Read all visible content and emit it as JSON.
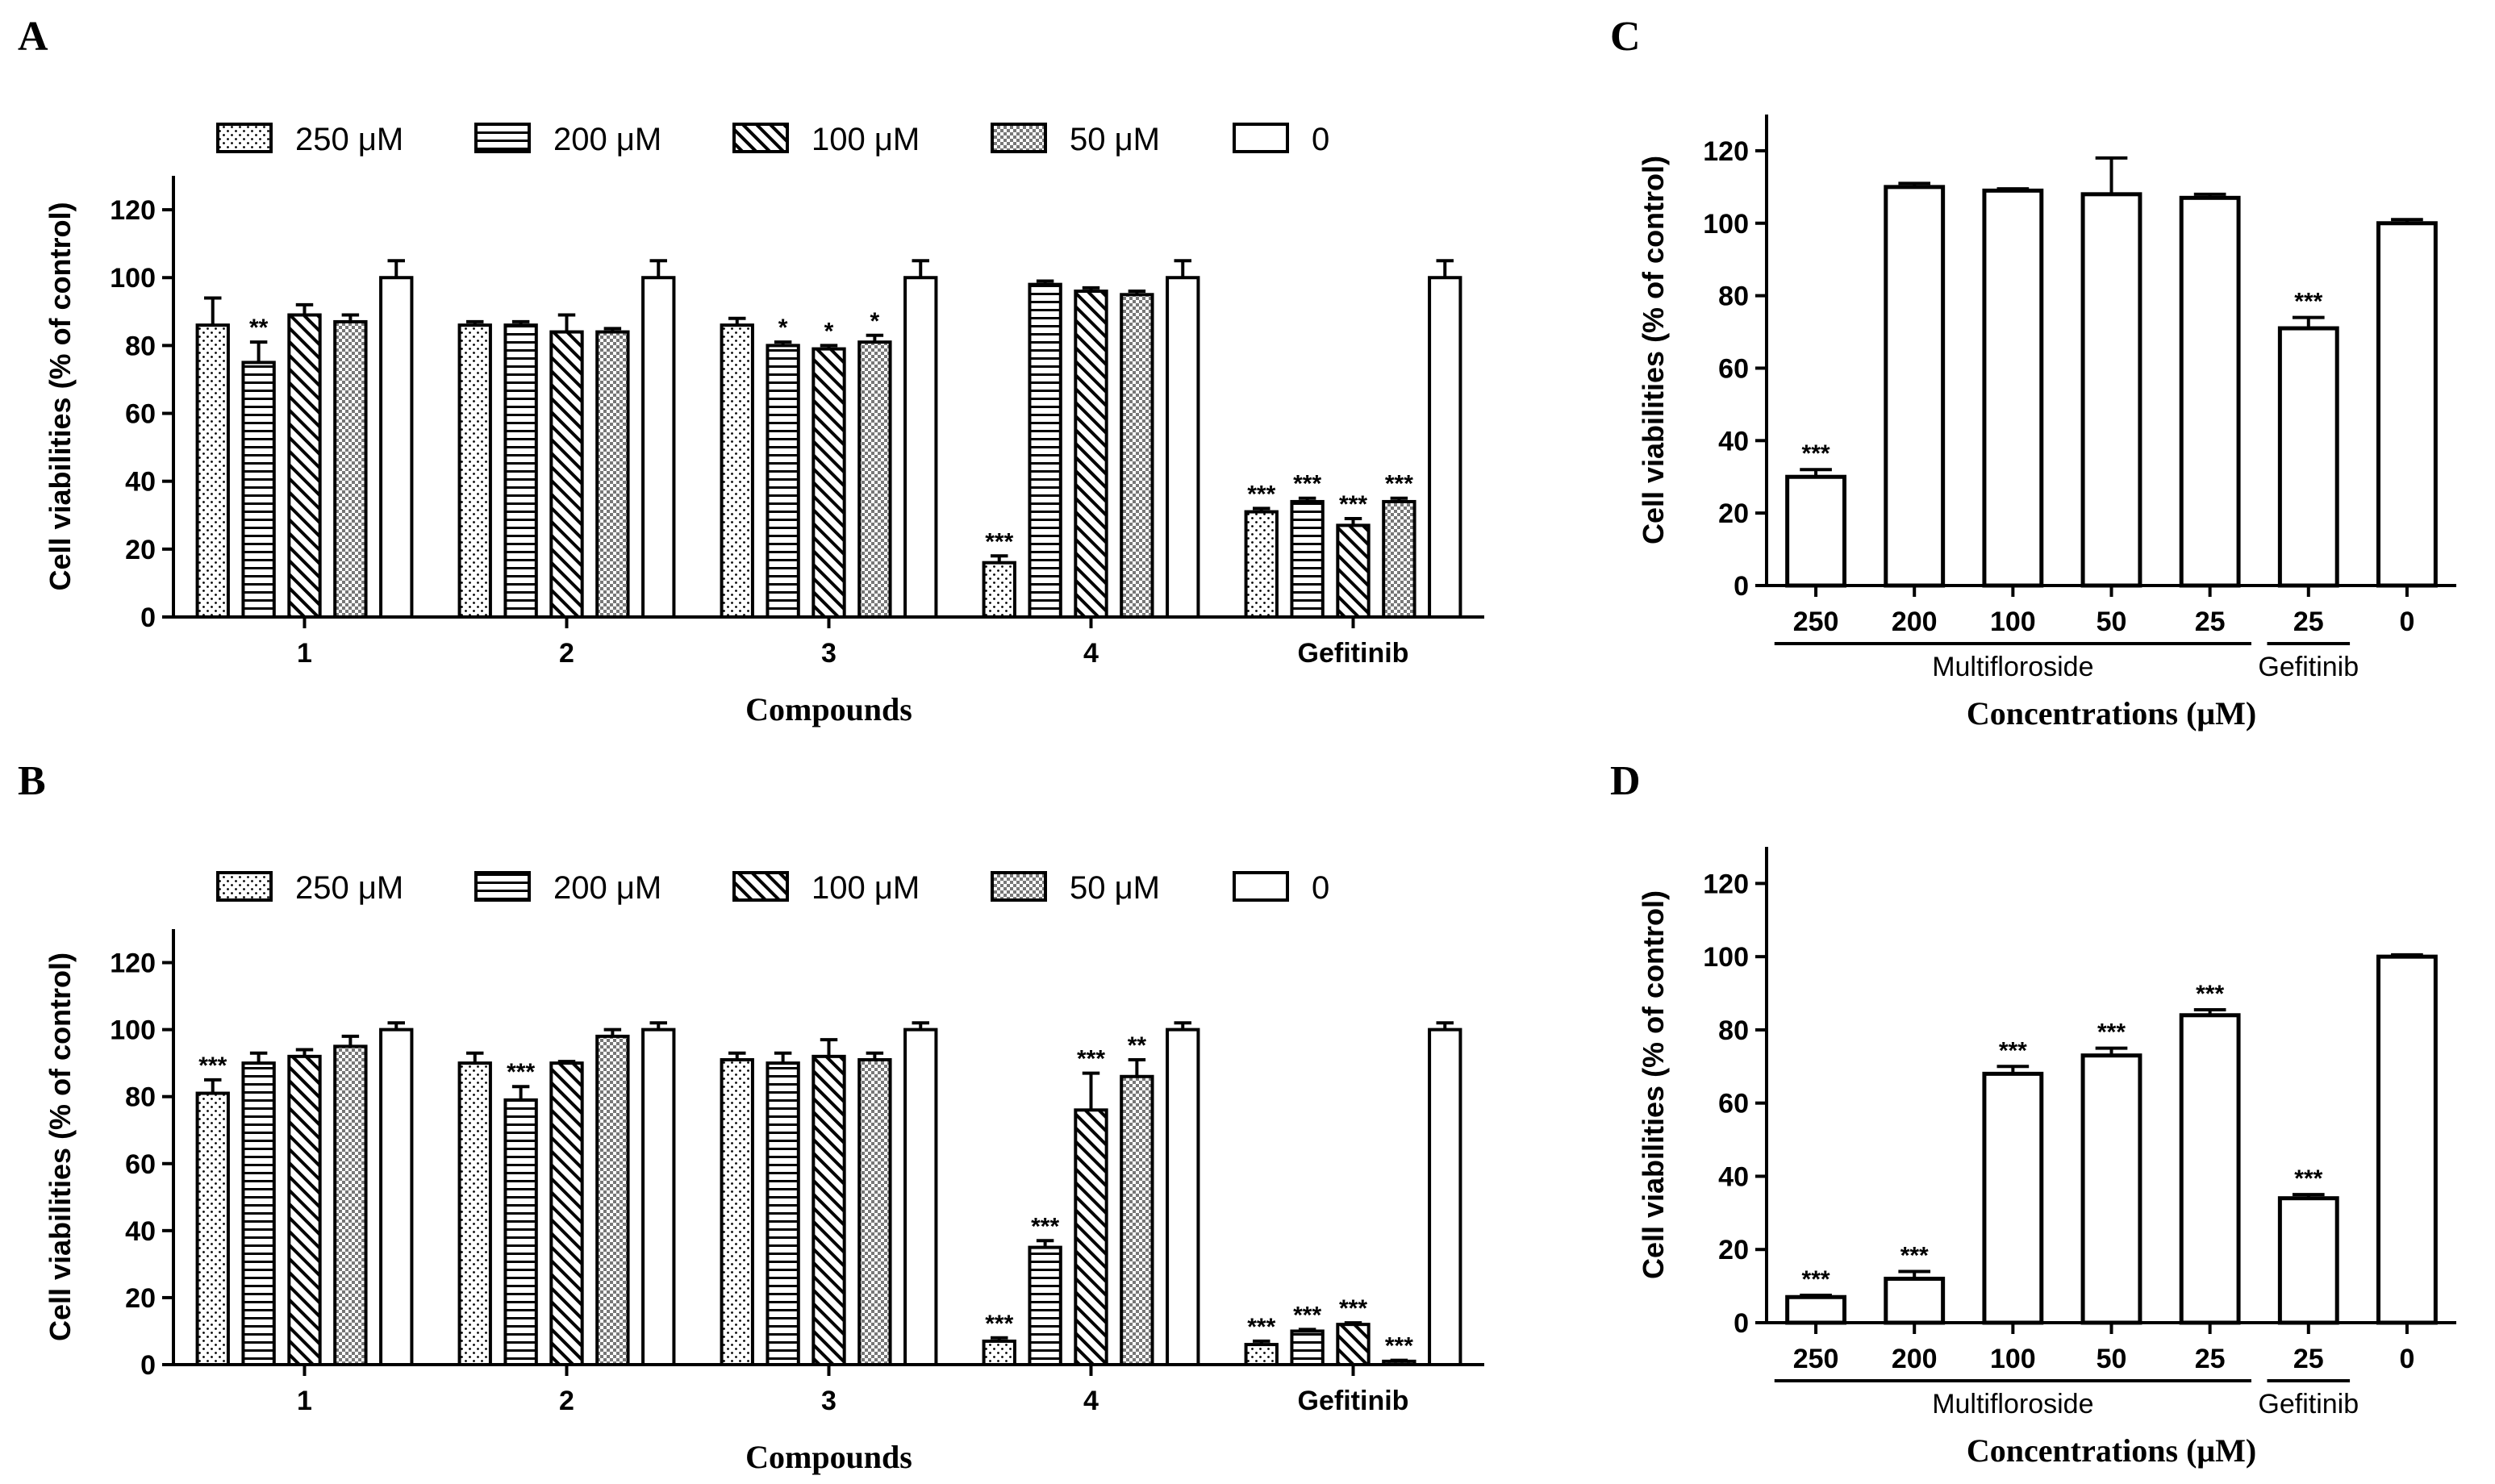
{
  "chart_data": [
    {
      "panel": "A",
      "type": "bar",
      "xlabel": "Compounds",
      "ylabel": "Cell viabilities (% of control)",
      "ylim": [
        0,
        130
      ],
      "yticks": [
        0,
        20,
        40,
        60,
        80,
        100,
        120
      ],
      "categories": [
        "1",
        "2",
        "3",
        "4",
        "Gefitinib"
      ],
      "series": [
        {
          "name": "250 μM",
          "pattern": "dots",
          "values": [
            86,
            86,
            86,
            16,
            31
          ],
          "errors": [
            8,
            1,
            2,
            2,
            1
          ],
          "sig": [
            "",
            "",
            "",
            "***",
            "***"
          ]
        },
        {
          "name": "200 μM",
          "pattern": "hlines",
          "values": [
            75,
            86,
            80,
            98,
            34
          ],
          "errors": [
            6,
            1,
            1,
            1,
            1
          ],
          "sig": [
            "**",
            "",
            "*",
            "",
            "***"
          ]
        },
        {
          "name": "100 μM",
          "pattern": "diag",
          "values": [
            89,
            84,
            79,
            96,
            27
          ],
          "errors": [
            3,
            5,
            1,
            1,
            2
          ],
          "sig": [
            "",
            "",
            "*",
            "",
            "***"
          ]
        },
        {
          "name": "50 μM",
          "pattern": "check",
          "values": [
            87,
            84,
            81,
            95,
            34
          ],
          "errors": [
            2,
            1,
            2,
            1,
            1
          ],
          "sig": [
            "",
            "",
            "*",
            "",
            "***"
          ]
        },
        {
          "name": "0",
          "pattern": "blank",
          "values": [
            100,
            100,
            100,
            100,
            100
          ],
          "errors": [
            5,
            5,
            5,
            5,
            5
          ],
          "sig": [
            "",
            "",
            "",
            "",
            ""
          ]
        }
      ]
    },
    {
      "panel": "B",
      "type": "bar",
      "xlabel": "Compounds",
      "ylabel": "Cell viabilities (% of control)",
      "ylim": [
        0,
        130
      ],
      "yticks": [
        0,
        20,
        40,
        60,
        80,
        100,
        120
      ],
      "categories": [
        "1",
        "2",
        "3",
        "4",
        "Gefitinib"
      ],
      "series": [
        {
          "name": "250 μM",
          "pattern": "dots",
          "values": [
            81,
            90,
            91,
            7,
            6
          ],
          "errors": [
            4,
            3,
            2,
            1,
            1
          ],
          "sig": [
            "***",
            "",
            "",
            "***",
            "***"
          ]
        },
        {
          "name": "200 μM",
          "pattern": "hlines",
          "values": [
            90,
            79,
            90,
            35,
            10
          ],
          "errors": [
            3,
            4,
            3,
            2,
            0.5
          ],
          "sig": [
            "",
            "***",
            "",
            "***",
            "***"
          ]
        },
        {
          "name": "100 μM",
          "pattern": "diag",
          "values": [
            92,
            90,
            92,
            76,
            12
          ],
          "errors": [
            2,
            0.5,
            5,
            11,
            0.5
          ],
          "sig": [
            "",
            "",
            "",
            "***",
            "***"
          ]
        },
        {
          "name": "50 μM",
          "pattern": "check",
          "values": [
            95,
            98,
            91,
            86,
            1
          ],
          "errors": [
            3,
            2,
            2,
            5,
            0.3
          ],
          "sig": [
            "",
            "",
            "",
            "**",
            "***"
          ]
        },
        {
          "name": "0",
          "pattern": "blank",
          "values": [
            100,
            100,
            100,
            100,
            100
          ],
          "errors": [
            2,
            2,
            2,
            2,
            2
          ],
          "sig": [
            "",
            "",
            "",
            "",
            ""
          ]
        }
      ]
    },
    {
      "panel": "C",
      "type": "bar",
      "xlabel": "Concentrations (μM)",
      "ylabel": "Cell viabilities (% of control)",
      "ylim": [
        0,
        130
      ],
      "yticks": [
        0,
        20,
        40,
        60,
        80,
        100,
        120
      ],
      "categories": [
        "250",
        "200",
        "100",
        "50",
        "25",
        "25",
        "0"
      ],
      "values": [
        30,
        110,
        109,
        108,
        107,
        71,
        100
      ],
      "errors": [
        2,
        1,
        0.5,
        10,
        1,
        3,
        1
      ],
      "sig": [
        "***",
        "",
        "",
        "",
        "",
        "***",
        ""
      ],
      "groups": [
        {
          "label": "Multifloroside",
          "from": 0,
          "to": 4
        },
        {
          "label": "Gefitinib",
          "from": 5,
          "to": 5
        }
      ]
    },
    {
      "panel": "D",
      "type": "bar",
      "xlabel": "Concentrations (μM)",
      "ylabel": "Cell viabilities (% of control)",
      "ylim": [
        0,
        130
      ],
      "yticks": [
        0,
        20,
        40,
        60,
        80,
        100,
        120
      ],
      "categories": [
        "250",
        "200",
        "100",
        "50",
        "25",
        "25",
        "0"
      ],
      "values": [
        7,
        12,
        68,
        73,
        84,
        34,
        100
      ],
      "errors": [
        0.5,
        2,
        2,
        2,
        1.5,
        1,
        0.5
      ],
      "sig": [
        "***",
        "***",
        "***",
        "***",
        "***",
        "***",
        ""
      ],
      "groups": [
        {
          "label": "Multifloroside",
          "from": 0,
          "to": 4
        },
        {
          "label": "Gefitinib",
          "from": 5,
          "to": 5
        }
      ]
    }
  ]
}
